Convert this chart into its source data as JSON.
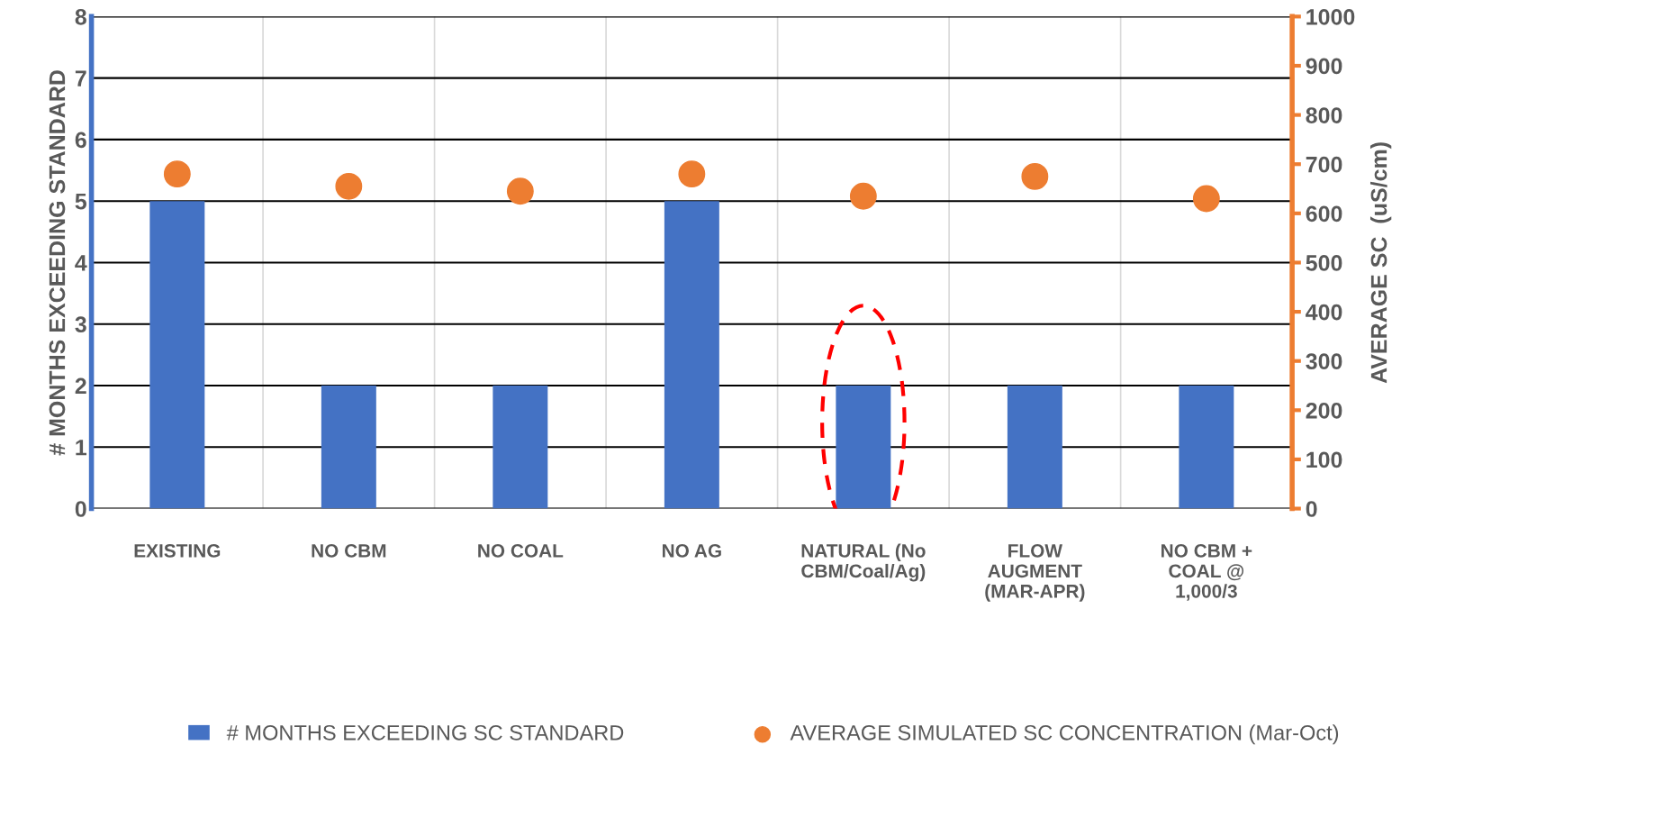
{
  "chart_data": {
    "type": "bar",
    "ylabel": "# MONTHS EXCEEDING STANDARD",
    "y2label": "AVERAGE SC  (uS/cm)",
    "categories": [
      "EXISTING",
      "NO CBM",
      "NO COAL",
      "NO AG",
      "NATURAL (No\nCBM/Coal/Ag)",
      "FLOW\nAUGMENT\n(MAR-APR)",
      "NO CBM +\nCOAL @\n1,000/3"
    ],
    "series": [
      {
        "name": "# MONTHS EXCEEDING SC STANDARD",
        "color": "#4472c4",
        "values": [
          5,
          2,
          2,
          5,
          2,
          2,
          2
        ]
      },
      {
        "name": "AVERAGE SIMULATED SC CONCENTRATION (Mar-Oct)",
        "color": "#ed7d31",
        "type": "scatter",
        "axis": "y2",
        "values": [
          680,
          655,
          645,
          680,
          635,
          675,
          630
        ]
      }
    ],
    "ylim": [
      0,
      8
    ],
    "yticks": [
      0,
      1,
      2,
      3,
      4,
      5,
      6,
      7,
      8
    ],
    "y2lim": [
      0,
      1000
    ],
    "y2ticks": [
      0,
      100,
      200,
      300,
      400,
      500,
      600,
      700,
      800,
      900,
      1000
    ],
    "grid": true,
    "legend": "bottom",
    "marker": "circle"
  }
}
